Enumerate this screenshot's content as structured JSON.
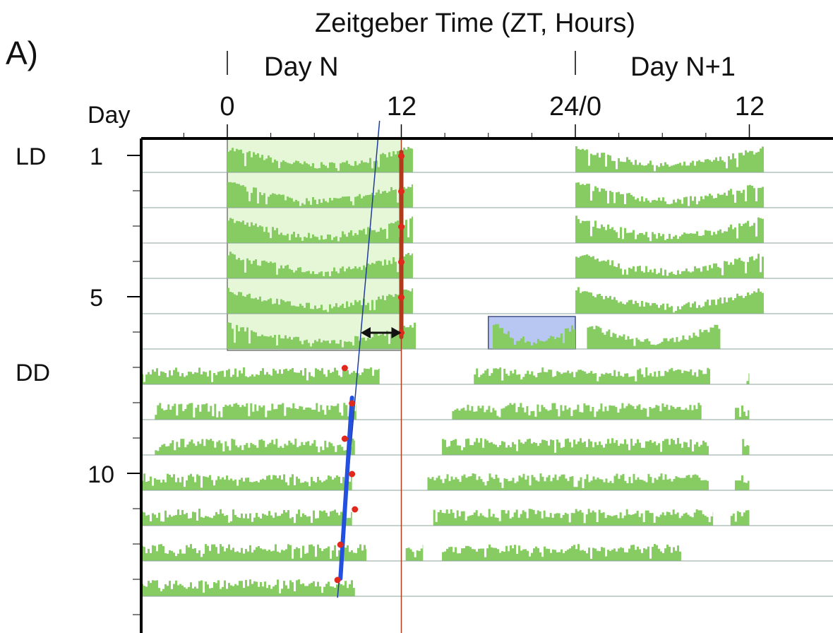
{
  "panel_label": "A)",
  "chart_data": {
    "type": "actogram",
    "title": "Zeitgeber Time (ZT, Hours)",
    "day_labels": [
      "Day N",
      "Day N+1"
    ],
    "x_ticks": [
      "0",
      "12",
      "24/0",
      "12"
    ],
    "x_range": [
      -6,
      36
    ],
    "y_title": "Day",
    "y_tick_labels": [
      "1",
      "5",
      "10"
    ],
    "conditions": [
      {
        "label": "LD",
        "start_day": 1
      },
      {
        "label": "DD",
        "start_day": 7
      }
    ],
    "num_days": 13,
    "light_phase_hours": [
      0,
      12
    ],
    "activity_color": "#86cc63",
    "light_phase_color": "#e6f7d8",
    "highlight_box_color": "#b7c7f2",
    "activity_rows": [
      {
        "day": 1,
        "segments": [
          [
            0,
            12.8
          ],
          [
            24,
            37
          ]
        ]
      },
      {
        "day": 2,
        "segments": [
          [
            0,
            12.8
          ],
          [
            24,
            37
          ]
        ]
      },
      {
        "day": 3,
        "segments": [
          [
            0,
            12.8
          ],
          [
            24,
            37
          ]
        ]
      },
      {
        "day": 4,
        "segments": [
          [
            0,
            12.8
          ],
          [
            24,
            37
          ]
        ]
      },
      {
        "day": 5,
        "segments": [
          [
            0,
            12.8
          ],
          [
            24,
            37
          ]
        ]
      },
      {
        "day": 6,
        "segments": [
          [
            0,
            13
          ],
          [
            18.3,
            24
          ],
          [
            24.8,
            34
          ]
        ]
      },
      {
        "day": 7,
        "segments": [
          [
            -6,
            10.5
          ],
          [
            17,
            33.3
          ],
          [
            35.8,
            36
          ]
        ]
      },
      {
        "day": 8,
        "segments": [
          [
            -5,
            8.9
          ],
          [
            15.5,
            32.7
          ],
          [
            35,
            36
          ]
        ]
      },
      {
        "day": 9,
        "segments": [
          [
            -5,
            8.8
          ],
          [
            14.8,
            33.2
          ],
          [
            35.5,
            36
          ]
        ]
      },
      {
        "day": 10,
        "segments": [
          [
            -6,
            8.6
          ],
          [
            13.8,
            33.2
          ],
          [
            35,
            36
          ]
        ]
      },
      {
        "day": 11,
        "segments": [
          [
            -6,
            8.6
          ],
          [
            14.2,
            33.5
          ],
          [
            34.7,
            36
          ]
        ]
      },
      {
        "day": 12,
        "segments": [
          [
            -6,
            9.6
          ],
          [
            12.3,
            13.5
          ],
          [
            14.8,
            31.3
          ]
        ]
      },
      {
        "day": 13,
        "segments": [
          [
            -6,
            8.8
          ]
        ]
      }
    ],
    "highlight_box": {
      "day": 6,
      "x_start": 18,
      "x_end": 24
    },
    "onset_points": [
      {
        "day": 1,
        "hour": 12
      },
      {
        "day": 2,
        "hour": 12
      },
      {
        "day": 3,
        "hour": 12
      },
      {
        "day": 4,
        "hour": 12
      },
      {
        "day": 5,
        "hour": 12
      },
      {
        "day": 6,
        "hour": 12
      },
      {
        "day": 7,
        "hour": 8.1
      },
      {
        "day": 8,
        "hour": 8.6
      },
      {
        "day": 9,
        "hour": 8.1
      },
      {
        "day": 10,
        "hour": 8.6
      },
      {
        "day": 11,
        "hour": 8.8
      },
      {
        "day": 12,
        "hour": 7.8
      },
      {
        "day": 13,
        "hour": 7.6
      }
    ],
    "lab_fit_line": {
      "color": "#b03a1c",
      "points": [
        [
          12,
          1
        ],
        [
          12,
          6
        ]
      ]
    },
    "free_run_fit_line": {
      "color": "#2450e0",
      "points": [
        [
          8.6,
          8
        ],
        [
          7.8,
          13
        ]
      ]
    },
    "reference_line_red": {
      "color": "#b03a1c",
      "hour": 12
    },
    "reference_line_blue": {
      "color": "#1f3b9c",
      "points": [
        [
          10.5,
          0.5
        ],
        [
          7.6,
          14.0
        ]
      ]
    },
    "phase_arrow": {
      "day": 6,
      "from_hour": 9.2,
      "to_hour": 12
    }
  }
}
